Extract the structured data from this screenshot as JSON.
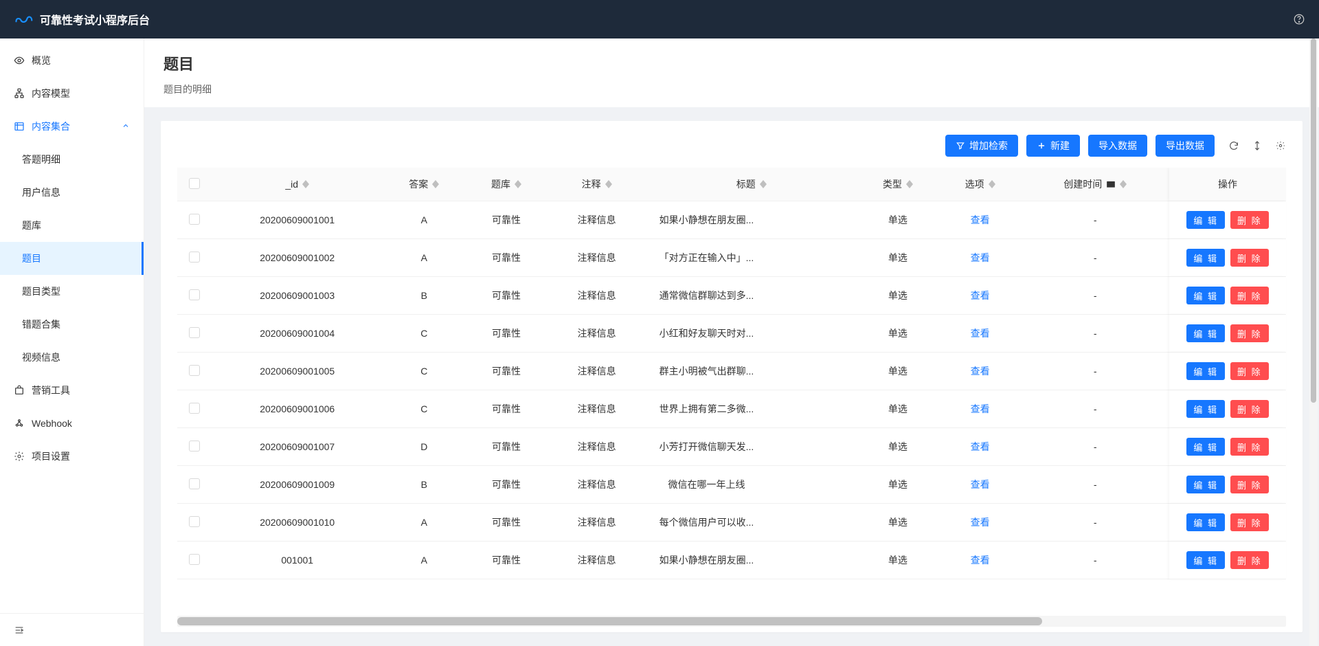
{
  "header": {
    "title": "可靠性考试小程序后台"
  },
  "sidebar": {
    "items": [
      {
        "icon": "eye",
        "label": "概览"
      },
      {
        "icon": "tree",
        "label": "内容模型"
      },
      {
        "icon": "list",
        "label": "内容集合",
        "open": true,
        "children": [
          {
            "label": "答题明细"
          },
          {
            "label": "用户信息"
          },
          {
            "label": "题库"
          },
          {
            "label": "题目",
            "active": true
          },
          {
            "label": "题目类型"
          },
          {
            "label": "错题合集"
          },
          {
            "label": "视频信息"
          }
        ]
      },
      {
        "icon": "bag",
        "label": "营销工具"
      },
      {
        "icon": "webhook",
        "label": "Webhook"
      },
      {
        "icon": "gear",
        "label": "项目设置"
      }
    ]
  },
  "page": {
    "title": "题目",
    "subtitle": "题目的明细"
  },
  "toolbar": {
    "add_filter": "增加检索",
    "new": "新建",
    "import": "导入数据",
    "export": "导出数据"
  },
  "table": {
    "columns": {
      "id": "_id",
      "answer": "答案",
      "bank": "题库",
      "note": "注释",
      "title": "标题",
      "type": "类型",
      "option": "选项",
      "created": "创建时间",
      "ops": "操作"
    },
    "view_label": "查看",
    "edit_label": "编 辑",
    "delete_label": "删 除",
    "empty": "-",
    "rows": [
      {
        "id": "20200609001001",
        "answer": "A",
        "bank": "可靠性",
        "note": "注释信息",
        "title": "如果小静想在朋友圈...",
        "type": "单选"
      },
      {
        "id": "20200609001002",
        "answer": "A",
        "bank": "可靠性",
        "note": "注释信息",
        "title": "「对方正在输入中」...",
        "type": "单选"
      },
      {
        "id": "20200609001003",
        "answer": "B",
        "bank": "可靠性",
        "note": "注释信息",
        "title": "通常微信群聊达到多...",
        "type": "单选"
      },
      {
        "id": "20200609001004",
        "answer": "C",
        "bank": "可靠性",
        "note": "注释信息",
        "title": "小红和好友聊天时对...",
        "type": "单选"
      },
      {
        "id": "20200609001005",
        "answer": "C",
        "bank": "可靠性",
        "note": "注释信息",
        "title": "群主小明被气出群聊...",
        "type": "单选"
      },
      {
        "id": "20200609001006",
        "answer": "C",
        "bank": "可靠性",
        "note": "注释信息",
        "title": "世界上拥有第二多微...",
        "type": "单选"
      },
      {
        "id": "20200609001007",
        "answer": "D",
        "bank": "可靠性",
        "note": "注释信息",
        "title": "小芳打开微信聊天发...",
        "type": "单选"
      },
      {
        "id": "20200609001009",
        "answer": "B",
        "bank": "可靠性",
        "note": "注释信息",
        "title": "微信在哪一年上线",
        "type": "单选"
      },
      {
        "id": "20200609001010",
        "answer": "A",
        "bank": "可靠性",
        "note": "注释信息",
        "title": "每个微信用户可以收...",
        "type": "单选"
      },
      {
        "id": "001001",
        "answer": "A",
        "bank": "可靠性",
        "note": "注释信息",
        "title": "如果小静想在朋友圈...",
        "type": "单选"
      }
    ]
  },
  "colors": {
    "primary": "#1677ff",
    "danger": "#ff4d4f",
    "header_bg": "#1e2a3a",
    "selected_bg": "#e6f4ff"
  }
}
